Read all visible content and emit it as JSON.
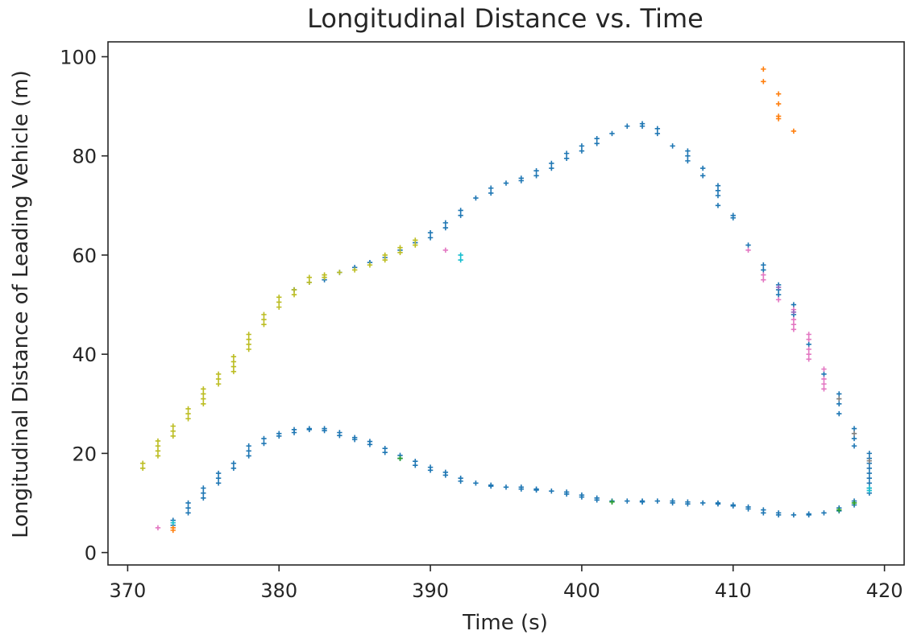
{
  "chart_data": {
    "type": "scatter",
    "title": "Longitudinal Distance vs. Time",
    "xlabel": "Time (s)",
    "ylabel": "Longitudinal Distance of Leading Vehicle (m)",
    "xlim": [
      368.7,
      421.3
    ],
    "ylim": [
      -2.5,
      103
    ],
    "xticks": [
      370,
      380,
      390,
      400,
      410,
      420
    ],
    "yticks": [
      0,
      20,
      40,
      60,
      80,
      100
    ],
    "grid": false,
    "marker": "plus",
    "series": [
      {
        "color": "#1f77b4",
        "points": [
          [
            373,
            5.5
          ],
          [
            373,
            6.5
          ],
          [
            374,
            8
          ],
          [
            374,
            9
          ],
          [
            374,
            10
          ],
          [
            375,
            11
          ],
          [
            375,
            12
          ],
          [
            375,
            13
          ],
          [
            376,
            14
          ],
          [
            376,
            15
          ],
          [
            376,
            16
          ],
          [
            377,
            17
          ],
          [
            377,
            18
          ],
          [
            378,
            19.5
          ],
          [
            378,
            20.5
          ],
          [
            378,
            21.5
          ],
          [
            379,
            22
          ],
          [
            379,
            23
          ],
          [
            380,
            23.5
          ],
          [
            380,
            24
          ],
          [
            381,
            24.2
          ],
          [
            381,
            24.8
          ],
          [
            382,
            24.8
          ],
          [
            382,
            25
          ],
          [
            383,
            25
          ],
          [
            383,
            24.6
          ],
          [
            384,
            24.2
          ],
          [
            384,
            23.6
          ],
          [
            385,
            23.2
          ],
          [
            385,
            22.8
          ],
          [
            386,
            22.4
          ],
          [
            386,
            21.8
          ],
          [
            387,
            21
          ],
          [
            387,
            20.2
          ],
          [
            388,
            19.6
          ],
          [
            388,
            19
          ],
          [
            389,
            18.4
          ],
          [
            389,
            17.6
          ],
          [
            390,
            17.2
          ],
          [
            390,
            16.6
          ],
          [
            391,
            16.2
          ],
          [
            391,
            15.6
          ],
          [
            392,
            15
          ],
          [
            392,
            14.4
          ],
          [
            393,
            14
          ],
          [
            394,
            13.6
          ],
          [
            394,
            13.4
          ],
          [
            395,
            13.2
          ],
          [
            396,
            13.2
          ],
          [
            396,
            12.8
          ],
          [
            397,
            12.8
          ],
          [
            397,
            12.6
          ],
          [
            398,
            12.4
          ],
          [
            399,
            12.2
          ],
          [
            399,
            11.8
          ],
          [
            400,
            11.6
          ],
          [
            400,
            11.2
          ],
          [
            401,
            11
          ],
          [
            401,
            10.6
          ],
          [
            402,
            10.4
          ],
          [
            403,
            10.4
          ],
          [
            404,
            10.4
          ],
          [
            404,
            10.2
          ],
          [
            405,
            10.4
          ],
          [
            406,
            10.4
          ],
          [
            406,
            10
          ],
          [
            407,
            10.2
          ],
          [
            407,
            9.8
          ],
          [
            408,
            10
          ],
          [
            409,
            10
          ],
          [
            409,
            9.8
          ],
          [
            410,
            9.6
          ],
          [
            410,
            9.4
          ],
          [
            411,
            9.2
          ],
          [
            411,
            8.8
          ],
          [
            412,
            8.6
          ],
          [
            412,
            8
          ],
          [
            413,
            8
          ],
          [
            413,
            7.6
          ],
          [
            414,
            7.6
          ],
          [
            415,
            7.8
          ],
          [
            415,
            7.6
          ],
          [
            416,
            8
          ],
          [
            417,
            8.4
          ],
          [
            417,
            9
          ],
          [
            418,
            9.6
          ],
          [
            418,
            10.4
          ],
          [
            381,
            53
          ],
          [
            382,
            54.5
          ],
          [
            383,
            55
          ],
          [
            384,
            56.5
          ],
          [
            385,
            57.5
          ],
          [
            386,
            58.5
          ],
          [
            387,
            59.5
          ],
          [
            388,
            61
          ],
          [
            389,
            62.5
          ],
          [
            390,
            63.5
          ],
          [
            390,
            64.5
          ],
          [
            391,
            65.5
          ],
          [
            391,
            66.5
          ],
          [
            392,
            68
          ],
          [
            392,
            69
          ],
          [
            393,
            71.5
          ],
          [
            394,
            72.5
          ],
          [
            394,
            73.5
          ],
          [
            395,
            74.5
          ],
          [
            396,
            75
          ],
          [
            396,
            75.5
          ],
          [
            397,
            76
          ],
          [
            397,
            77
          ],
          [
            398,
            77.5
          ],
          [
            398,
            78.5
          ],
          [
            399,
            79.5
          ],
          [
            399,
            80.5
          ],
          [
            400,
            81
          ],
          [
            400,
            82
          ],
          [
            401,
            82.5
          ],
          [
            401,
            83.5
          ],
          [
            402,
            84.5
          ],
          [
            403,
            86
          ],
          [
            404,
            86.5
          ],
          [
            404,
            86
          ],
          [
            405,
            85.5
          ],
          [
            405,
            84.5
          ],
          [
            406,
            82
          ],
          [
            407,
            81
          ],
          [
            407,
            80
          ],
          [
            407,
            79
          ],
          [
            408,
            77.5
          ],
          [
            408,
            76
          ],
          [
            409,
            74
          ],
          [
            409,
            73
          ],
          [
            409,
            72
          ],
          [
            409,
            70
          ],
          [
            410,
            68
          ],
          [
            410,
            67.5
          ],
          [
            411,
            62
          ],
          [
            412,
            58
          ],
          [
            412,
            57
          ],
          [
            413,
            54
          ],
          [
            413,
            53
          ],
          [
            413,
            52
          ],
          [
            414,
            50
          ],
          [
            414,
            48
          ],
          [
            415,
            42
          ],
          [
            416,
            36
          ],
          [
            417,
            32
          ],
          [
            417,
            30
          ],
          [
            417,
            28
          ],
          [
            418,
            25
          ],
          [
            418,
            23
          ],
          [
            418,
            21.5
          ],
          [
            419,
            20
          ],
          [
            419,
            19
          ],
          [
            419,
            18
          ],
          [
            419,
            17
          ],
          [
            419,
            16
          ],
          [
            419,
            15
          ],
          [
            419,
            14
          ],
          [
            419,
            13
          ],
          [
            419,
            12
          ]
        ]
      },
      {
        "color": "#bcbd22",
        "points": [
          [
            371,
            17
          ],
          [
            371,
            18
          ],
          [
            372,
            19.5
          ],
          [
            372,
            20.5
          ],
          [
            372,
            21.5
          ],
          [
            372,
            22.5
          ],
          [
            373,
            23.5
          ],
          [
            373,
            24.5
          ],
          [
            373,
            25.5
          ],
          [
            374,
            27
          ],
          [
            374,
            28
          ],
          [
            374,
            29
          ],
          [
            375,
            30
          ],
          [
            375,
            31
          ],
          [
            375,
            32
          ],
          [
            375,
            33
          ],
          [
            376,
            34
          ],
          [
            376,
            35
          ],
          [
            376,
            36
          ],
          [
            377,
            36.5
          ],
          [
            377,
            37.5
          ],
          [
            377,
            38.5
          ],
          [
            377,
            39.5
          ],
          [
            378,
            41
          ],
          [
            378,
            42
          ],
          [
            378,
            43
          ],
          [
            378,
            44
          ],
          [
            379,
            46
          ],
          [
            379,
            47
          ],
          [
            379,
            48
          ],
          [
            380,
            49.5
          ],
          [
            380,
            50.5
          ],
          [
            380,
            51.5
          ],
          [
            381,
            52
          ],
          [
            381,
            53
          ],
          [
            382,
            54.5
          ],
          [
            382,
            55.5
          ],
          [
            383,
            55.5
          ],
          [
            383,
            56
          ],
          [
            384,
            56.5
          ],
          [
            385,
            57
          ],
          [
            386,
            58
          ],
          [
            387,
            59
          ],
          [
            387,
            60
          ],
          [
            388,
            60.5
          ],
          [
            388,
            61.5
          ],
          [
            389,
            62
          ],
          [
            389,
            63
          ]
        ]
      },
      {
        "color": "#e377c2",
        "points": [
          [
            372,
            5
          ],
          [
            391,
            61
          ],
          [
            411,
            61
          ],
          [
            412,
            56
          ],
          [
            412,
            55
          ],
          [
            413,
            51
          ],
          [
            414,
            49
          ],
          [
            414,
            47
          ],
          [
            414,
            46
          ],
          [
            414,
            45
          ],
          [
            415,
            44
          ],
          [
            415,
            43
          ],
          [
            415,
            41
          ],
          [
            415,
            40
          ],
          [
            415,
            39
          ],
          [
            416,
            37
          ],
          [
            416,
            35
          ],
          [
            416,
            34
          ],
          [
            416,
            33
          ]
        ]
      },
      {
        "color": "#ff7f0e",
        "points": [
          [
            373,
            4.5
          ],
          [
            373,
            5
          ],
          [
            412,
            97.5
          ],
          [
            412,
            95
          ],
          [
            413,
            92.5
          ],
          [
            413,
            90.5
          ],
          [
            413,
            88
          ],
          [
            413,
            87.5
          ],
          [
            414,
            85
          ]
        ]
      },
      {
        "color": "#17becf",
        "points": [
          [
            373,
            6
          ],
          [
            392,
            60
          ],
          [
            392,
            59
          ],
          [
            419,
            13
          ],
          [
            419,
            12.5
          ]
        ]
      },
      {
        "color": "#2ca02c",
        "points": [
          [
            388,
            19
          ],
          [
            402,
            10.2
          ],
          [
            417,
            8.6
          ],
          [
            418,
            10
          ]
        ]
      },
      {
        "color": "#7f7f7f",
        "points": [
          [
            417,
            31
          ],
          [
            418,
            24
          ],
          [
            419,
            18.5
          ]
        ]
      },
      {
        "color": "#9467bd",
        "points": [
          [
            413,
            53.5
          ],
          [
            414,
            48.5
          ]
        ]
      }
    ]
  }
}
